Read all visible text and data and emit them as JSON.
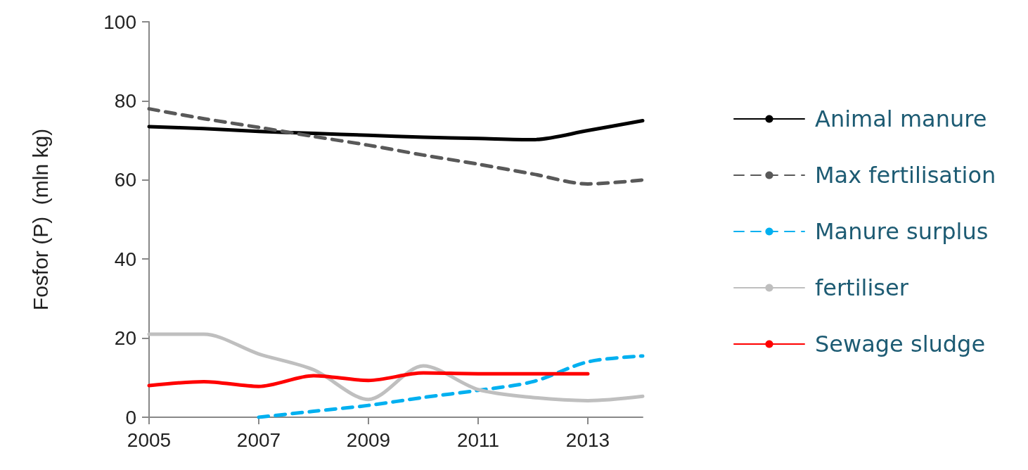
{
  "chart_data": {
    "type": "line",
    "ylabel": "Fosfor (P)  (mln kg)",
    "x": [
      2005,
      2006,
      2007,
      2008,
      2009,
      2010,
      2011,
      2012,
      2013,
      2014
    ],
    "xlim": [
      2005,
      2014
    ],
    "xticks": [
      2005,
      2007,
      2009,
      2011,
      2013
    ],
    "ylim": [
      0,
      100
    ],
    "yticks": [
      0,
      20,
      40,
      60,
      80,
      100
    ],
    "grid": false,
    "legend": "right",
    "marker": "none",
    "series": [
      {
        "name": "Animal manure",
        "color": "#000000",
        "line_style": "solid",
        "values": [
          73.5,
          73,
          72.3,
          71.8,
          71.3,
          70.8,
          70.5,
          70.2,
          72.5,
          75
        ]
      },
      {
        "name": "Max fertilisation",
        "color": "#595959",
        "line_style": "dashed",
        "values": [
          78,
          75.5,
          73.3,
          71,
          68.8,
          66.3,
          64,
          61.5,
          59,
          60
        ]
      },
      {
        "name": "Manure surplus",
        "color": "#00b0f0",
        "line_style": "dashed",
        "values": [
          null,
          null,
          0,
          1.5,
          3,
          5,
          6.8,
          9,
          14,
          15.5
        ]
      },
      {
        "name": "fertiliser",
        "color": "#bfbfbf",
        "line_style": "solid",
        "values": [
          21,
          21,
          16,
          12,
          4.5,
          13,
          7,
          5,
          4.2,
          5.3
        ]
      },
      {
        "name": "Sewage sludge",
        "color": "#ff0000",
        "line_style": "solid",
        "values": [
          8,
          9,
          7.8,
          10.5,
          9.3,
          11.2,
          11,
          11,
          11,
          null
        ]
      }
    ]
  }
}
